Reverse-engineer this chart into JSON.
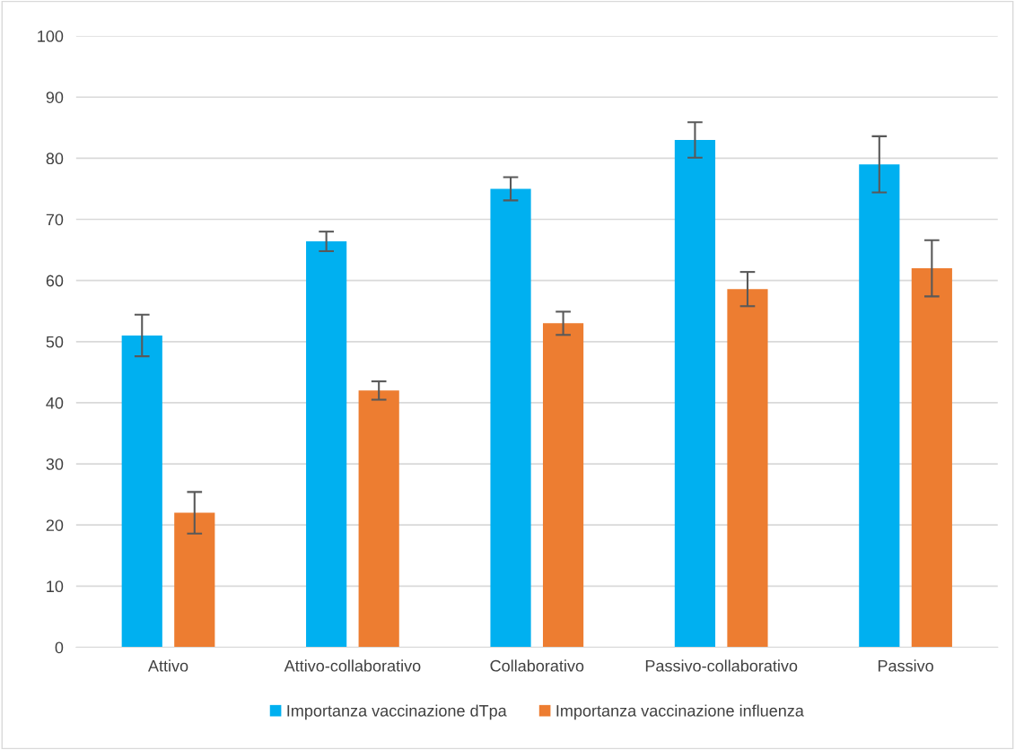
{
  "chart_data": {
    "type": "bar",
    "categories": [
      "Attivo",
      "Attivo-collaborativo",
      "Collaborativo",
      "Passivo-collaborativo",
      "Passivo"
    ],
    "series": [
      {
        "name": "Importanza vaccinazione dTpa",
        "color": "#00b0f0",
        "values": [
          51,
          66.4,
          75,
          83,
          79
        ],
        "errors": [
          3.4,
          1.6,
          1.9,
          2.9,
          4.6
        ]
      },
      {
        "name": "Importanza vaccinazione influenza",
        "color": "#ed7d31",
        "values": [
          22,
          42,
          53,
          58.6,
          62
        ],
        "errors": [
          3.4,
          1.5,
          1.9,
          2.8,
          4.6
        ]
      }
    ],
    "ylim": [
      0,
      100
    ],
    "yticks": [
      0,
      10,
      20,
      30,
      40,
      50,
      60,
      70,
      80,
      90,
      100
    ],
    "grid": "y",
    "legend": "bottom"
  }
}
